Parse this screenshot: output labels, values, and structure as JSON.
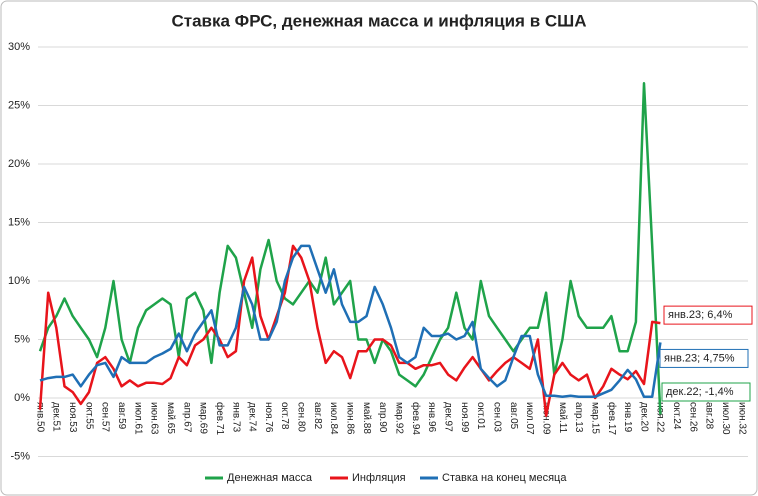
{
  "chart_data": {
    "type": "line",
    "title": "Ставка ФРС, денежная масса и инфляция в США",
    "categories": [
      "янв.50",
      null,
      "дек.51",
      null,
      "ноя.53",
      null,
      "окт.55",
      null,
      "сен.57",
      null,
      "авг.59",
      null,
      "июл.61",
      null,
      "июн.63",
      null,
      "май.65",
      null,
      "апр.67",
      null,
      "мар.69",
      null,
      "фев.71",
      null,
      "янв.73",
      null,
      "дек.74",
      null,
      "ноя.76",
      null,
      "окт.78",
      null,
      "сен.80",
      null,
      "авг.82",
      null,
      "июл.84",
      null,
      "июн.86",
      null,
      "май.88",
      null,
      "апр.90",
      null,
      "мар.92",
      null,
      "фев.94",
      null,
      "янв.96",
      null,
      "дек.97",
      null,
      "ноя.99",
      null,
      "окт.01",
      null,
      "сен.03",
      null,
      "авг.05",
      null,
      "июл.07",
      null,
      "июн.09",
      null,
      "май.11",
      null,
      "апр.13",
      null,
      "мар.15",
      null,
      "фев.17",
      null,
      "янв.19",
      null,
      "дек.20",
      null,
      "ноя.22",
      null,
      "окт.24",
      null,
      "сен.26",
      null,
      "авг.28",
      null,
      "июл.30",
      null,
      "июн.32"
    ],
    "series": [
      {
        "name": "Денежная масса",
        "color": "#1fa34a",
        "values": [
          4,
          6,
          7,
          8.5,
          7,
          6,
          5,
          3.5,
          6,
          10,
          5,
          3,
          6,
          7.5,
          8,
          8.5,
          8,
          3.5,
          8.5,
          9,
          7.5,
          3,
          9,
          13,
          12,
          9,
          6,
          11,
          13.5,
          10,
          8.5,
          8,
          9,
          10,
          9,
          12,
          8,
          9,
          10,
          5,
          5,
          3,
          5,
          4,
          2,
          1.5,
          1,
          2,
          3.5,
          5,
          6,
          9,
          6,
          5,
          10,
          7,
          6,
          5,
          4,
          5,
          6,
          6,
          9,
          2,
          5,
          10,
          7,
          6,
          6,
          6,
          7,
          4,
          4,
          6.5,
          26.9,
          13,
          -1.4,
          null,
          null,
          null,
          null,
          null,
          null,
          null,
          null,
          null,
          null
        ]
      },
      {
        "name": "Инфляция",
        "color": "#e8141b",
        "values": [
          -1,
          9,
          6,
          1,
          0.5,
          -0.5,
          0.5,
          3,
          3.5,
          2.5,
          1,
          1.5,
          1,
          1.3,
          1.3,
          1.2,
          1.7,
          3.5,
          2.8,
          4.5,
          5,
          6,
          5,
          3.5,
          4,
          10,
          12,
          7,
          5,
          7,
          9,
          13,
          12,
          10,
          6,
          3,
          4,
          3.5,
          1.7,
          4,
          4,
          5,
          5,
          4.5,
          3,
          3,
          2.5,
          2.8,
          2.8,
          3,
          2,
          1.5,
          2.6,
          3.5,
          2.5,
          1.5,
          2.3,
          3,
          3.5,
          3,
          2.5,
          5,
          -1.5,
          2,
          3,
          2,
          1.5,
          2,
          0,
          1,
          2.5,
          2,
          1.6,
          2.3,
          1.2,
          6.5,
          6.4,
          null,
          null,
          null,
          null,
          null,
          null,
          null,
          null,
          null,
          null
        ]
      },
      {
        "name": "Ставка на конец месяца",
        "color": "#1f6fb5",
        "values": [
          1.5,
          1.7,
          1.8,
          1.8,
          2,
          1,
          2,
          2.8,
          3,
          1.8,
          3.5,
          3,
          3,
          3,
          3.5,
          3.8,
          4.2,
          5.5,
          4,
          5.5,
          6.5,
          7.5,
          4.5,
          4.5,
          6,
          9.5,
          8,
          5,
          5,
          6.5,
          10,
          12,
          13,
          13,
          11,
          9,
          11,
          8,
          6.5,
          6.5,
          7,
          9.5,
          8,
          6,
          3.5,
          3,
          3.5,
          6,
          5.3,
          5.3,
          5.5,
          5,
          5.3,
          6.5,
          2.5,
          1.7,
          1,
          1.5,
          3.5,
          5.3,
          5.3,
          2,
          0.2,
          0.2,
          0.1,
          0.2,
          0.1,
          0.1,
          0.1,
          0.4,
          0.7,
          1.5,
          2.4,
          1.6,
          0.1,
          0.1,
          4.75,
          null,
          null,
          null,
          null,
          null,
          null,
          null,
          null,
          null,
          null
        ]
      }
    ],
    "annotations": [
      "янв.23; 6,4%",
      "янв.23; 4,75%",
      "дек.22; -1,4%"
    ],
    "ylim": [
      -5,
      30
    ],
    "yticks": [
      {
        "value": -5,
        "label": "-5%"
      },
      {
        "value": 0,
        "label": "0%"
      },
      {
        "value": 5,
        "label": "5%"
      },
      {
        "value": 10,
        "label": "10%"
      },
      {
        "value": 15,
        "label": "15%"
      },
      {
        "value": 20,
        "label": "20%"
      },
      {
        "value": 25,
        "label": "25%"
      },
      {
        "value": 30,
        "label": "30%"
      }
    ],
    "grid": true,
    "legend": "bottom"
  }
}
